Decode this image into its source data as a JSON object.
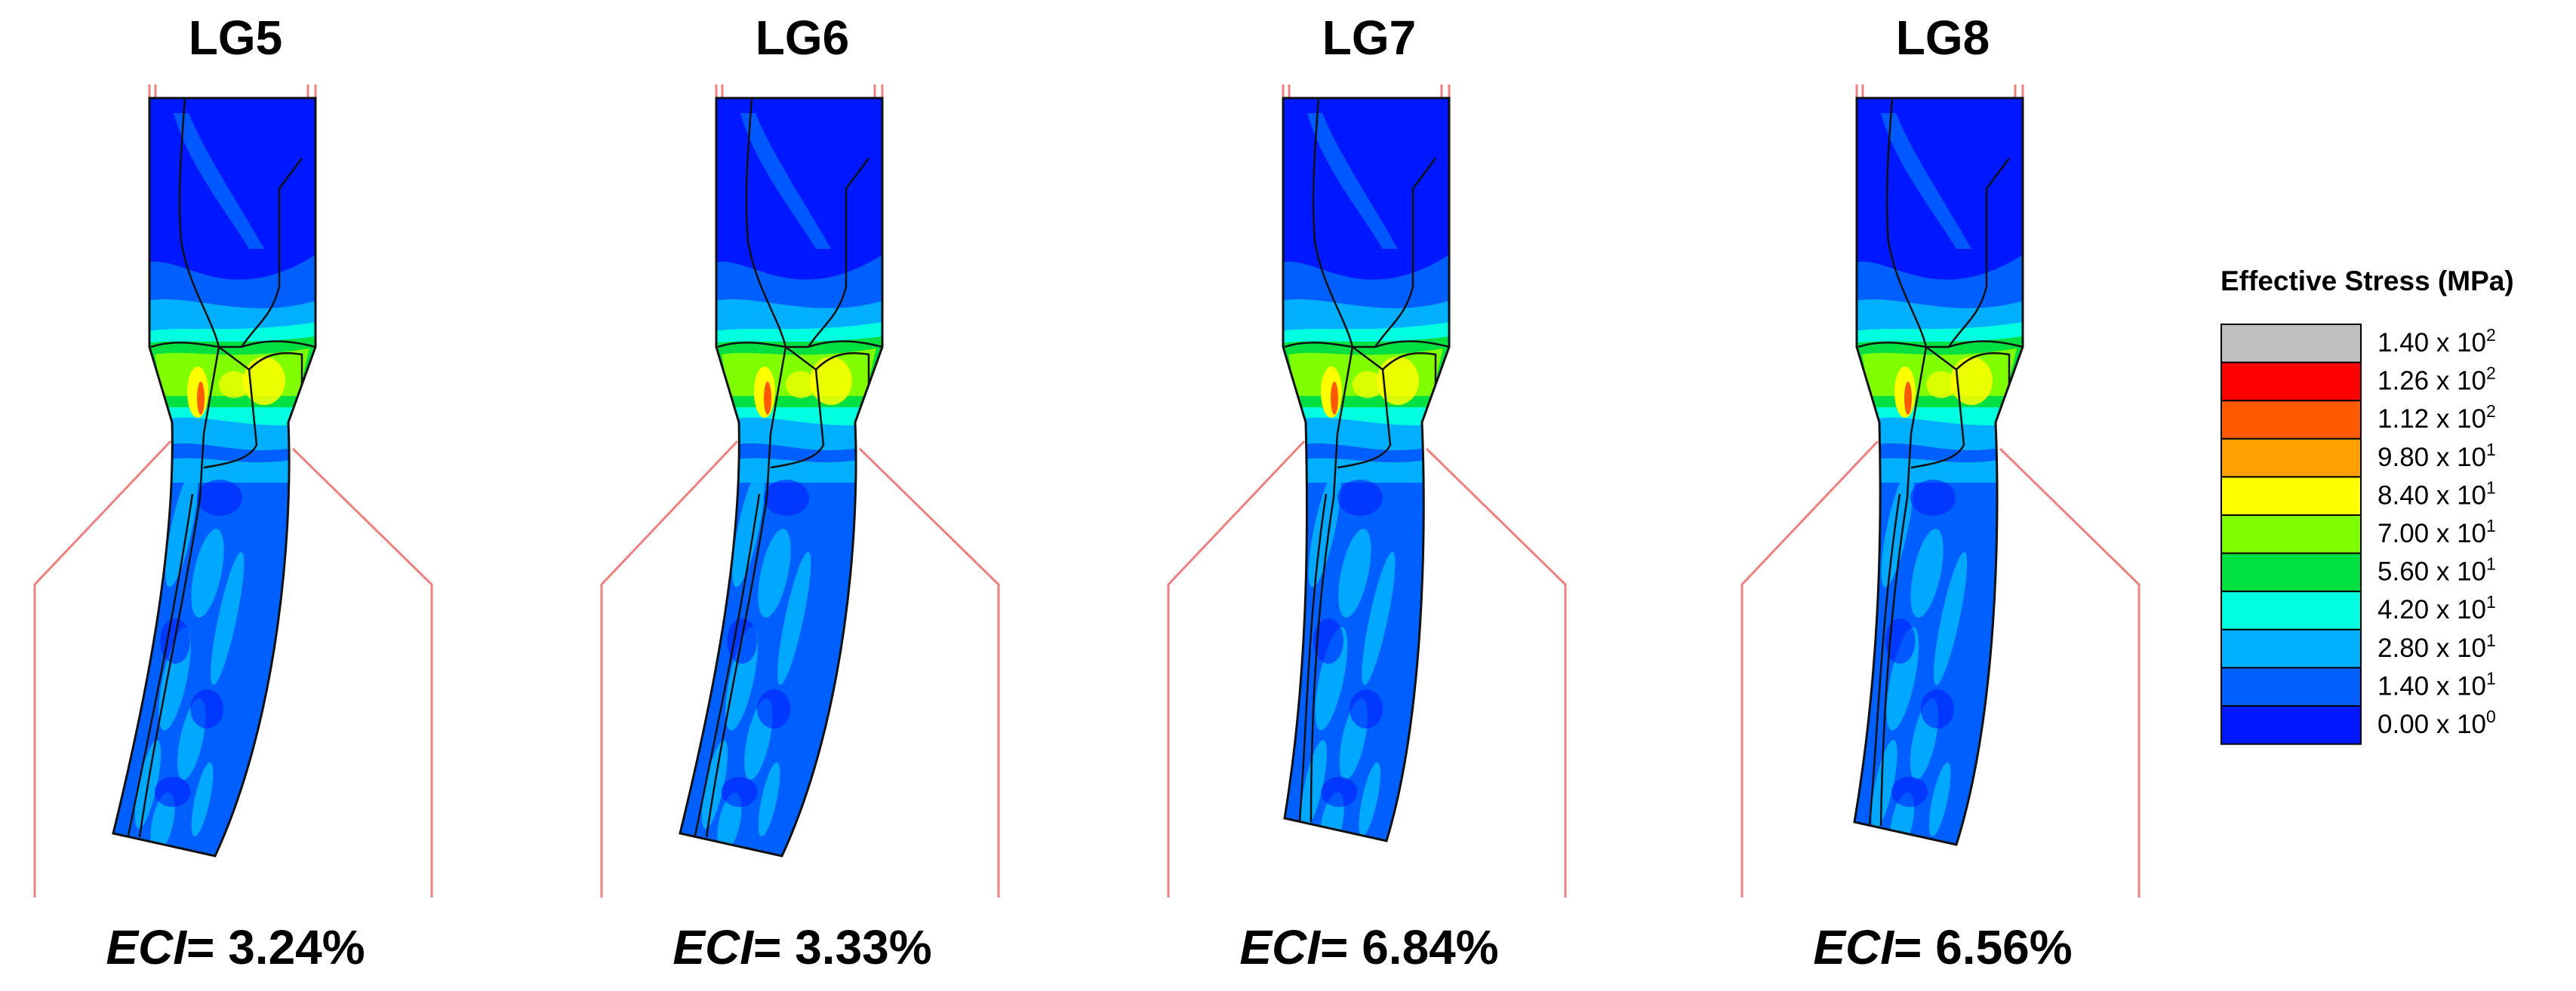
{
  "panels": [
    {
      "title": "LG5",
      "eci_symbol": "ECI",
      "eci_value": "= 3.24%"
    },
    {
      "title": "LG6",
      "eci_symbol": "ECI",
      "eci_value": "= 3.33%"
    },
    {
      "title": "LG7",
      "eci_symbol": "ECI",
      "eci_value": "= 6.84%"
    },
    {
      "title": "LG8",
      "eci_symbol": "ECI",
      "eci_value": "= 6.56%"
    }
  ],
  "legend": {
    "title": "Effective Stress (MPa)",
    "entries": [
      {
        "mantissa": "1.40 x 10",
        "exponent": "2",
        "color": "#c0c0c0"
      },
      {
        "mantissa": "1.26 x 10",
        "exponent": "2",
        "color": "#ff0000"
      },
      {
        "mantissa": "1.12 x 10",
        "exponent": "2",
        "color": "#ff5a00"
      },
      {
        "mantissa": "9.80 x 10",
        "exponent": "1",
        "color": "#ffa000"
      },
      {
        "mantissa": "8.40 x 10",
        "exponent": "1",
        "color": "#ffff00"
      },
      {
        "mantissa": "7.00 x 10",
        "exponent": "1",
        "color": "#80ff00"
      },
      {
        "mantissa": "5.60 x 10",
        "exponent": "1",
        "color": "#00e040"
      },
      {
        "mantissa": "4.20 x 10",
        "exponent": "1",
        "color": "#00ffe0"
      },
      {
        "mantissa": "2.80 x 10",
        "exponent": "1",
        "color": "#00b0ff"
      },
      {
        "mantissa": "1.40 x 10",
        "exponent": "1",
        "color": "#0060ff"
      },
      {
        "mantissa": "0.00 x 10",
        "exponent": "0",
        "color": "#0018ff"
      }
    ]
  },
  "colors": {
    "die_outline": "#f08080",
    "mesh_line": "#111111",
    "deep_blue": "#0018ff",
    "mid_blue": "#0060ff",
    "light_blue": "#00b0ff"
  }
}
